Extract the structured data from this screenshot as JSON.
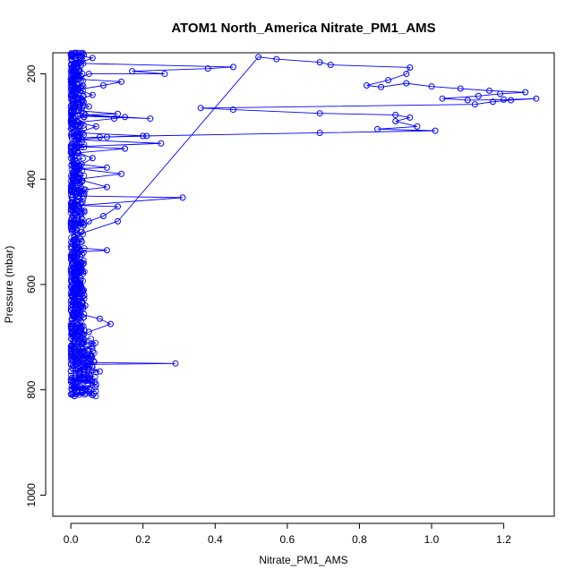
{
  "chart_data": {
    "type": "line",
    "title": "ATOM1 North_America Nitrate_PM1_AMS",
    "xlabel": "Nitrate_PM1_AMS",
    "ylabel": "Pressure (mbar)",
    "xlim": [
      -0.05,
      1.34
    ],
    "ylim": [
      1040,
      160
    ],
    "x_ticks": [
      0.0,
      0.2,
      0.4,
      0.6,
      0.8,
      1.0,
      1.2
    ],
    "x_tick_labels": [
      "0.0",
      "0.2",
      "0.4",
      "0.6",
      "0.8",
      "1.0",
      "1.2"
    ],
    "y_ticks": [
      200,
      400,
      600,
      800,
      1000
    ],
    "y_tick_labels": [
      "200",
      "400",
      "600",
      "800",
      "1000"
    ],
    "grid": false,
    "marker": "open-circle",
    "series_color": "#0000ff",
    "series": [
      {
        "values": [
          [
            0.01,
            812
          ],
          [
            0.03,
            805
          ],
          [
            0.06,
            810
          ],
          [
            0.02,
            795
          ],
          [
            0.07,
            790
          ],
          [
            0.02,
            780
          ],
          [
            0.05,
            770
          ],
          [
            0.02,
            760
          ],
          [
            0.08,
            765
          ],
          [
            0.03,
            752
          ],
          [
            0.29,
            750
          ],
          [
            0.02,
            748
          ],
          [
            0.04,
            735
          ],
          [
            0.01,
            725
          ],
          [
            0.03,
            712
          ],
          [
            0.02,
            700
          ],
          [
            0.05,
            690
          ],
          [
            0.11,
            675
          ],
          [
            0.08,
            665
          ],
          [
            0.02,
            655
          ],
          [
            0.04,
            640
          ],
          [
            0.01,
            625
          ],
          [
            0.03,
            610
          ],
          [
            0.02,
            595
          ],
          [
            0.01,
            580
          ],
          [
            0.03,
            565
          ],
          [
            0.01,
            550
          ],
          [
            0.02,
            538
          ],
          [
            0.1,
            535
          ],
          [
            0.02,
            530
          ],
          [
            0.01,
            515
          ],
          [
            0.03,
            500
          ],
          [
            0.05,
            480
          ],
          [
            0.09,
            470
          ],
          [
            0.13,
            452
          ],
          [
            0.02,
            450
          ],
          [
            0.31,
            435
          ],
          [
            0.02,
            432
          ],
          [
            0.04,
            420
          ],
          [
            0.1,
            415
          ],
          [
            0.02,
            400
          ],
          [
            0.14,
            390
          ],
          [
            0.02,
            380
          ],
          [
            0.1,
            378
          ],
          [
            0.03,
            372
          ],
          [
            0.06,
            360
          ],
          [
            0.02,
            350
          ],
          [
            0.15,
            342
          ],
          [
            0.02,
            338
          ],
          [
            0.25,
            332
          ],
          [
            0.02,
            325
          ],
          [
            0.1,
            320
          ],
          [
            0.21,
            318
          ],
          [
            0.02,
            312
          ],
          [
            0.07,
            300
          ],
          [
            0.02,
            292
          ],
          [
            0.12,
            285
          ],
          [
            0.15,
            282
          ],
          [
            0.02,
            280
          ],
          [
            0.22,
            285
          ],
          [
            0.04,
            278
          ],
          [
            0.13,
            276
          ],
          [
            0.02,
            270
          ],
          [
            0.05,
            262
          ],
          [
            0.02,
            250
          ],
          [
            0.06,
            240
          ],
          [
            0.02,
            230
          ],
          [
            0.09,
            222
          ],
          [
            0.14,
            215
          ],
          [
            0.02,
            210
          ],
          [
            0.05,
            200
          ],
          [
            0.26,
            200
          ],
          [
            0.17,
            195
          ],
          [
            0.38,
            190
          ],
          [
            0.45,
            187
          ],
          [
            0.02,
            180
          ],
          [
            0.06,
            170
          ],
          [
            0.02,
            165
          ]
        ]
      },
      {
        "values": [
          [
            0.02,
            505
          ],
          [
            0.13,
            480
          ],
          [
            0.52,
            168
          ],
          [
            0.57,
            172
          ],
          [
            0.69,
            178
          ],
          [
            0.72,
            183
          ],
          [
            0.94,
            188
          ],
          [
            0.93,
            200
          ],
          [
            0.88,
            212
          ],
          [
            0.82,
            222
          ],
          [
            0.86,
            225
          ],
          [
            0.93,
            218
          ],
          [
            1.0,
            224
          ],
          [
            1.08,
            228
          ],
          [
            1.16,
            232
          ],
          [
            1.26,
            235
          ],
          [
            1.19,
            238
          ],
          [
            1.13,
            242
          ],
          [
            1.03,
            247
          ],
          [
            1.1,
            250
          ],
          [
            1.2,
            249
          ],
          [
            1.29,
            247
          ],
          [
            1.22,
            250
          ],
          [
            1.17,
            253
          ],
          [
            1.12,
            258
          ],
          [
            0.36,
            265
          ],
          [
            0.45,
            268
          ],
          [
            0.69,
            275
          ],
          [
            0.9,
            278
          ],
          [
            0.94,
            283
          ],
          [
            0.9,
            290
          ],
          [
            0.96,
            300
          ],
          [
            0.85,
            305
          ],
          [
            1.01,
            308
          ],
          [
            0.69,
            312
          ],
          [
            0.2,
            318
          ],
          [
            0.08,
            320
          ],
          [
            0.02,
            322
          ]
        ]
      }
    ],
    "dense_cluster": {
      "x_range": [
        0.0,
        0.07
      ],
      "pressure_range": [
        160,
        812
      ],
      "count": 900
    }
  }
}
